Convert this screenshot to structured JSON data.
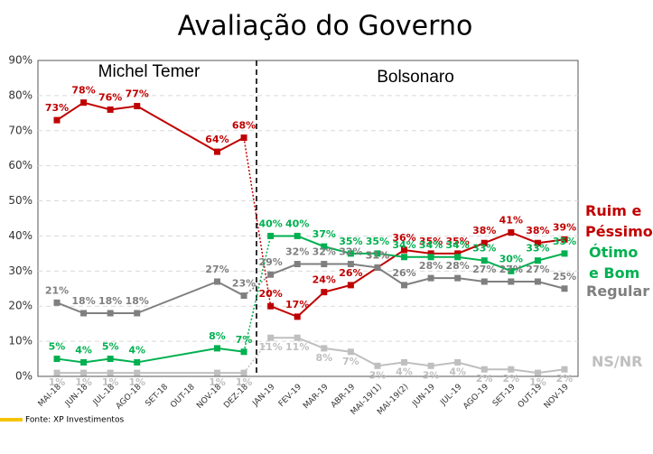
{
  "chart_data": {
    "type": "line",
    "title": "Avaliação do Governo",
    "annotations": [
      "Michel Temer",
      "Bolsonaro"
    ],
    "source": "Fonte: XP Investimentos",
    "categories": [
      "MAI-18",
      "JUN-18",
      "JUL-18",
      "AGO-18",
      "SET-18",
      "OUT-18",
      "NOV-18",
      "DEZ-18",
      "JAN-19",
      "FEV-19",
      "MAR-19",
      "ABR-19",
      "MAI-19(1)",
      "MAI-19(2)",
      "JUN-19",
      "JUL-19",
      "AGO-19",
      "SET-19",
      "OUT-19",
      "NOV-19"
    ],
    "series": [
      {
        "name": "Ruim e Péssimo",
        "color": "#c00000",
        "values": [
          73,
          78,
          76,
          77,
          null,
          null,
          64,
          68,
          20,
          17,
          24,
          26,
          31,
          36,
          35,
          35,
          38,
          41,
          38,
          39
        ],
        "value_labels": [
          "73%",
          "78%",
          "76%",
          "77%",
          null,
          null,
          "64%",
          "68%",
          "20%",
          "17%",
          "24%",
          "26%",
          "31%",
          "36%",
          "35%",
          "35%",
          "38%",
          "41%",
          "38%",
          "39%"
        ]
      },
      {
        "name": "Ótimo e Bom",
        "color": "#00b050",
        "values": [
          5,
          4,
          5,
          4,
          null,
          null,
          8,
          7,
          40,
          40,
          37,
          35,
          35,
          34,
          34,
          34,
          33,
          30,
          33,
          35
        ],
        "value_labels": [
          "5%",
          "4%",
          "5%",
          "4%",
          null,
          null,
          "8%",
          "7%",
          "40%",
          "40%",
          "37%",
          "35%",
          "35%",
          "34%",
          "34%",
          "34%",
          "33%",
          "30%",
          "33%",
          "35%"
        ]
      },
      {
        "name": "Regular",
        "color": "#7f7f7f",
        "values": [
          21,
          18,
          18,
          18,
          null,
          null,
          27,
          23,
          29,
          32,
          32,
          32,
          31,
          26,
          28,
          28,
          27,
          27,
          27,
          25
        ],
        "value_labels": [
          "21%",
          "18%",
          "18%",
          "18%",
          null,
          null,
          "27%",
          "23%",
          "29%",
          "32%",
          "32%",
          "32%",
          "31%",
          "26%",
          "28%",
          "28%",
          "27%",
          "27%",
          "27%",
          "25%"
        ]
      },
      {
        "name": "NS/NR",
        "color": "#bfbfbf",
        "values": [
          1,
          1,
          1,
          1,
          null,
          null,
          1,
          1,
          11,
          11,
          8,
          7,
          3,
          4,
          3,
          4,
          2,
          2,
          1,
          2
        ],
        "value_labels": [
          "1%",
          "1%",
          "1%",
          "1%",
          null,
          null,
          "1%",
          "1%",
          "11%",
          "11%",
          "8%",
          "7%",
          "3%",
          "4%",
          "3%",
          "4%",
          "2%",
          "2%",
          "1%",
          "2%"
        ]
      }
    ],
    "ylim": [
      0,
      90
    ],
    "yticks": [
      {
        "value": 0,
        "label": "0%"
      },
      {
        "value": 10,
        "label": "10%"
      },
      {
        "value": 20,
        "label": "20%"
      },
      {
        "value": 30,
        "label": "30%"
      },
      {
        "value": 40,
        "label": "40%"
      },
      {
        "value": 50,
        "label": "50%"
      },
      {
        "value": 60,
        "label": "60%"
      },
      {
        "value": 70,
        "label": "70%"
      },
      {
        "value": 80,
        "label": "80%"
      },
      {
        "value": 90,
        "label": "90%"
      }
    ],
    "grid": true
  }
}
